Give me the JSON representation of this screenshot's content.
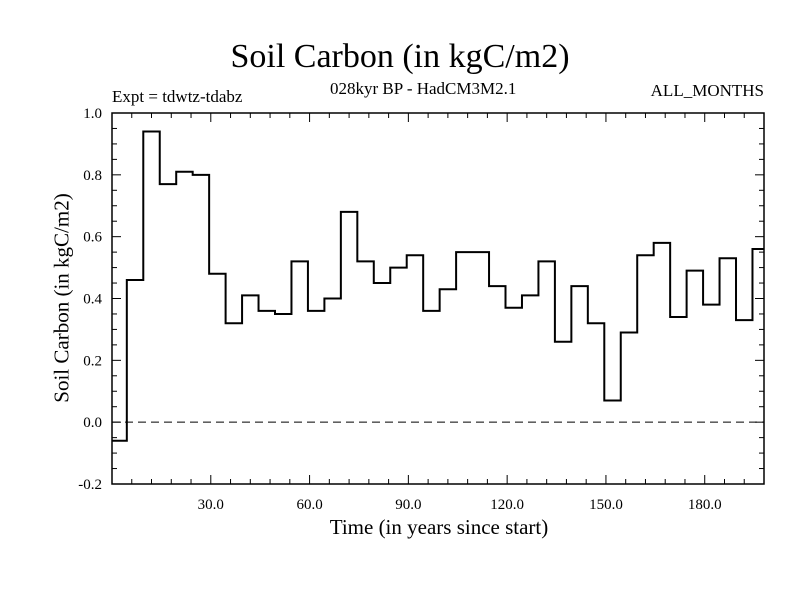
{
  "chart_data": {
    "type": "line",
    "title": "Soil Carbon (in kgC/m2)",
    "subtitle": "028kyr BP - HadCM3M2.1",
    "experiment": "Expt = tdwtz-tdabz",
    "period": "ALL_MONTHS",
    "xlabel": "Time (in years since start)",
    "ylabel": "Soil Carbon (in kgC/m2)",
    "xlim": [
      0,
      198
    ],
    "ylim": [
      -0.2,
      1.0
    ],
    "x_ticks": [
      30,
      60,
      90,
      120,
      150,
      180
    ],
    "x_tick_labels": [
      "30.0",
      "60.0",
      "90.0",
      "120.0",
      "150.0",
      "180.0"
    ],
    "y_ticks": [
      -0.2,
      0.0,
      0.2,
      0.4,
      0.6,
      0.8,
      1.0
    ],
    "y_tick_labels": [
      "-0.2",
      "0.0",
      "0.2",
      "0.4",
      "0.6",
      "0.8",
      "1.0"
    ],
    "reference_line": {
      "y": 0.0,
      "style": "dashed"
    },
    "series": [
      {
        "name": "Soil Carbon",
        "step": "mid",
        "x": [
          2,
          7,
          12,
          17,
          22,
          27,
          32,
          37,
          42,
          47,
          52,
          57,
          62,
          67,
          72,
          77,
          82,
          87,
          92,
          97,
          102,
          107,
          112,
          117,
          122,
          127,
          132,
          137,
          142,
          147,
          152,
          157,
          162,
          167,
          172,
          177,
          182,
          187,
          192,
          197
        ],
        "values": [
          -0.06,
          0.46,
          0.94,
          0.77,
          0.81,
          0.8,
          0.48,
          0.32,
          0.41,
          0.36,
          0.35,
          0.52,
          0.36,
          0.4,
          0.68,
          0.52,
          0.45,
          0.5,
          0.54,
          0.36,
          0.43,
          0.55,
          0.55,
          0.44,
          0.37,
          0.41,
          0.52,
          0.26,
          0.44,
          0.32,
          0.07,
          0.29,
          0.54,
          0.58,
          0.34,
          0.49,
          0.38,
          0.53,
          0.33,
          0.56
        ]
      }
    ]
  }
}
